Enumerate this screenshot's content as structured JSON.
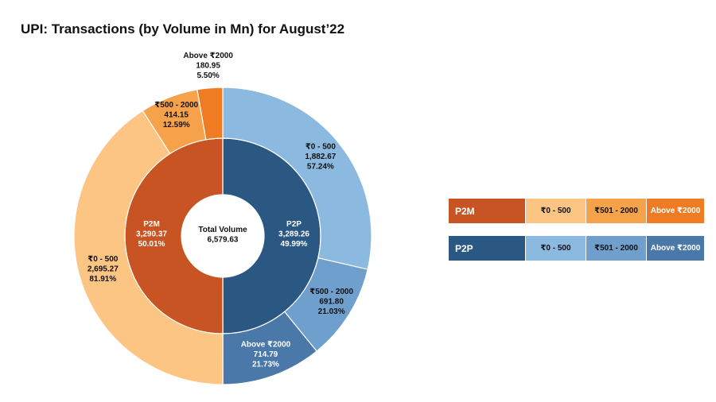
{
  "title": "UPI: Transactions (by Volume in Mn) for August’22",
  "colors": {
    "p2m_inner": "#c85423",
    "p2p_inner": "#2b5783",
    "p2m_0_500": "#fdc584",
    "p2m_501_2000": "#f6a24a",
    "p2m_above_2000": "#ef7b22",
    "p2p_0_500": "#8cb9df",
    "p2p_501_2000": "#6f9fcd",
    "p2p_above_2000": "#4a78a8"
  },
  "chart_data": {
    "type": "sunburst",
    "title": "UPI: Transactions (by Volume in Mn) for August’22",
    "center_label": {
      "title": "Total Volume",
      "value": "6,579.63"
    },
    "inner": [
      {
        "name": "P2P",
        "value": 3289.26,
        "value_text": "3,289.26",
        "percent_text": "49.99%",
        "color_key": "p2p_inner"
      },
      {
        "name": "P2M",
        "value": 3290.37,
        "value_text": "3,290.37",
        "percent_text": "50.01%",
        "color_key": "p2m_inner"
      }
    ],
    "outer": [
      {
        "parent": "P2P",
        "name": "₹0 - 500",
        "value": 1882.67,
        "value_text": "1,882.67",
        "percent_text": "57.24%",
        "color_key": "p2p_0_500",
        "text_color": "#111111"
      },
      {
        "parent": "P2P",
        "name": "₹500 - 2000",
        "value": 691.8,
        "value_text": "691.80",
        "percent_text": "21.03%",
        "color_key": "p2p_501_2000",
        "text_color": "#111111"
      },
      {
        "parent": "P2P",
        "name": "Above ₹2000",
        "value": 714.79,
        "value_text": "714.79",
        "percent_text": "21.73%",
        "color_key": "p2p_above_2000",
        "text_color": "#ffffff"
      },
      {
        "parent": "P2M",
        "name": "₹0 - 500",
        "value": 2695.27,
        "value_text": "2,695.27",
        "percent_text": "81.91%",
        "color_key": "p2m_0_500",
        "text_color": "#111111"
      },
      {
        "parent": "P2M",
        "name": "₹500 - 2000",
        "value": 414.15,
        "value_text": "414.15",
        "percent_text": "12.59%",
        "color_key": "p2m_501_2000",
        "text_color": "#111111"
      },
      {
        "parent": "P2M",
        "name": "Above ₹2000",
        "value": 180.95,
        "value_text": "180.95",
        "percent_text": "5.50%",
        "color_key": "p2m_above_2000",
        "text_color": "#111111"
      }
    ],
    "legend": [
      {
        "name": "P2M",
        "cells": [
          {
            "label": "P2M",
            "color_key": "p2m_inner",
            "text_color": "#ffffff"
          },
          {
            "label": "₹0 - 500",
            "color_key": "p2m_0_500",
            "text_color": "#111111"
          },
          {
            "label": "₹501 - 2000",
            "color_key": "p2m_501_2000",
            "text_color": "#111111"
          },
          {
            "label": "Above ₹2000",
            "color_key": "p2m_above_2000",
            "text_color": "#ffffff"
          }
        ]
      },
      {
        "name": "P2P",
        "cells": [
          {
            "label": "P2P",
            "color_key": "p2p_inner",
            "text_color": "#ffffff"
          },
          {
            "label": "₹0 - 500",
            "color_key": "p2p_0_500",
            "text_color": "#111111"
          },
          {
            "label": "₹501 - 2000",
            "color_key": "p2p_501_2000",
            "text_color": "#111111"
          },
          {
            "label": "Above ₹2000",
            "color_key": "p2p_above_2000",
            "text_color": "#ffffff"
          }
        ]
      }
    ]
  }
}
